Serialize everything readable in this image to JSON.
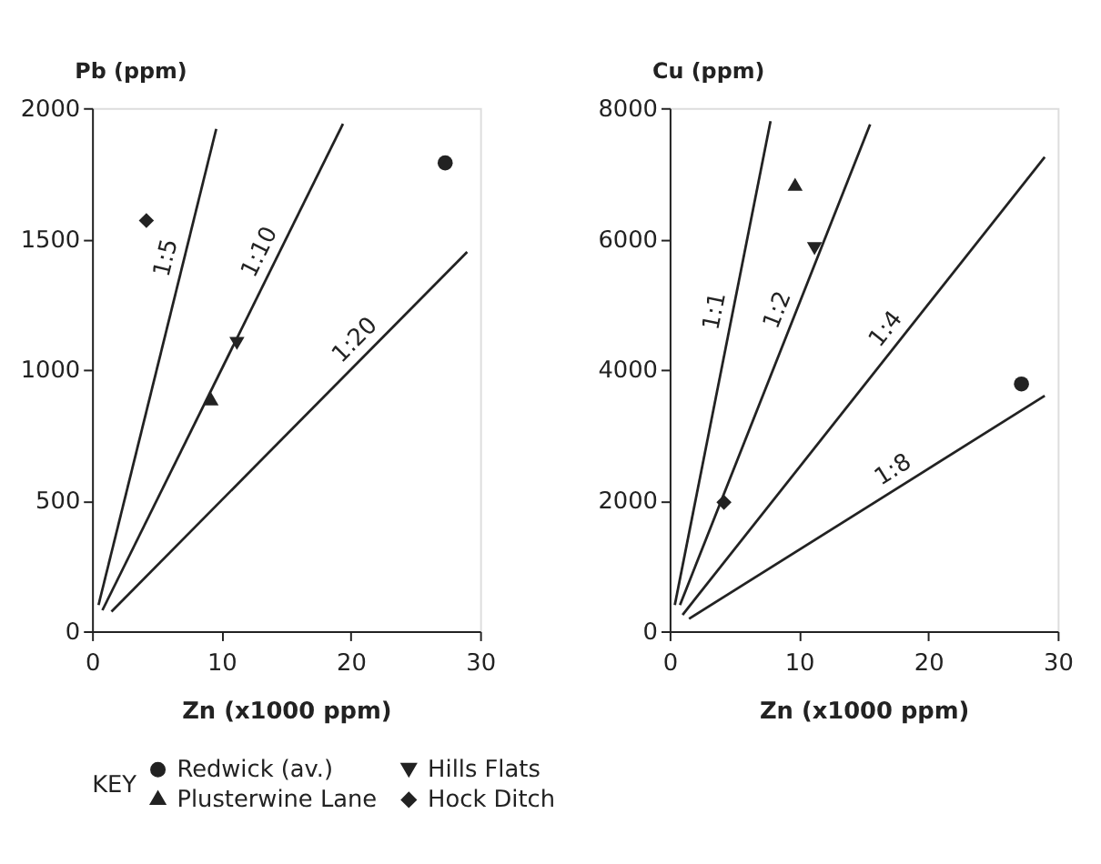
{
  "chart_data": [
    {
      "type": "scatter",
      "xlabel": "Zn (x1000 ppm)",
      "ylabel": "Pb (ppm)",
      "xlim": [
        0,
        30
      ],
      "ylim": [
        0,
        2000
      ],
      "xticks": [
        0,
        10,
        20,
        30
      ],
      "yticks": [
        0,
        500,
        1000,
        1500,
        2000
      ],
      "grid": false,
      "legend": "bottom",
      "legend_title": "KEY",
      "series": [
        {
          "name": "Redwick (av.)",
          "color": "#222222",
          "marker": "circle",
          "x": [
            27.3
          ],
          "values": [
            1790
          ]
        },
        {
          "name": "Hills Flats",
          "color": "#222222",
          "marker": "triangle-down",
          "x": [
            11.2
          ],
          "values": [
            1100
          ]
        },
        {
          "name": "Plusterwine Lane",
          "color": "#222222",
          "marker": "triangle",
          "x": [
            9.2
          ],
          "values": [
            880
          ]
        },
        {
          "name": "Hock Ditch",
          "color": "#222222",
          "marker": "diamond",
          "x": [
            4.2
          ],
          "values": [
            1570
          ]
        },
        {
          "type": "line",
          "color": "#222222",
          "x": [
            0.5,
            9.6
          ],
          "values": [
            100,
            1920
          ]
        },
        {
          "type": "line",
          "color": "#222222",
          "x": [
            0.8,
            19.4
          ],
          "values": [
            80,
            1940
          ]
        },
        {
          "type": "line",
          "color": "#222222",
          "x": [
            1.5,
            29
          ],
          "values": [
            75,
            1450
          ]
        }
      ],
      "annotations": [
        "1:5",
        "1:10",
        "1:20"
      ]
    },
    {
      "type": "scatter",
      "xlabel": "Zn (x1000 ppm)",
      "ylabel": "Cu (ppm)",
      "xlim": [
        0,
        30
      ],
      "ylim": [
        0,
        8000
      ],
      "xticks": [
        0,
        10,
        20,
        30
      ],
      "yticks": [
        0,
        2000,
        4000,
        6000,
        8000
      ],
      "grid": false,
      "series": [
        {
          "name": "Redwick (av.)",
          "color": "#222222",
          "marker": "circle",
          "x": [
            27.2
          ],
          "values": [
            3780
          ]
        },
        {
          "name": "Hills Flats",
          "color": "#222222",
          "marker": "triangle-down",
          "x": [
            11.2
          ],
          "values": [
            5850
          ]
        },
        {
          "name": "Plusterwine Lane",
          "color": "#222222",
          "marker": "triangle",
          "x": [
            9.7
          ],
          "values": [
            6800
          ]
        },
        {
          "name": "Hock Ditch",
          "color": "#222222",
          "marker": "diamond",
          "x": [
            4.2
          ],
          "values": [
            1970
          ]
        },
        {
          "type": "line",
          "color": "#222222",
          "x": [
            0.4,
            7.8
          ],
          "values": [
            400,
            7800
          ]
        },
        {
          "type": "line",
          "color": "#222222",
          "x": [
            0.8,
            15.5
          ],
          "values": [
            400,
            7750
          ]
        },
        {
          "type": "line",
          "color": "#222222",
          "x": [
            1.0,
            29
          ],
          "values": [
            250,
            7250
          ]
        },
        {
          "type": "line",
          "color": "#222222",
          "x": [
            1.5,
            29
          ],
          "values": [
            190,
            3600
          ]
        }
      ],
      "annotations": [
        "1:1",
        "1:2",
        "1:4",
        "1:8"
      ]
    }
  ]
}
